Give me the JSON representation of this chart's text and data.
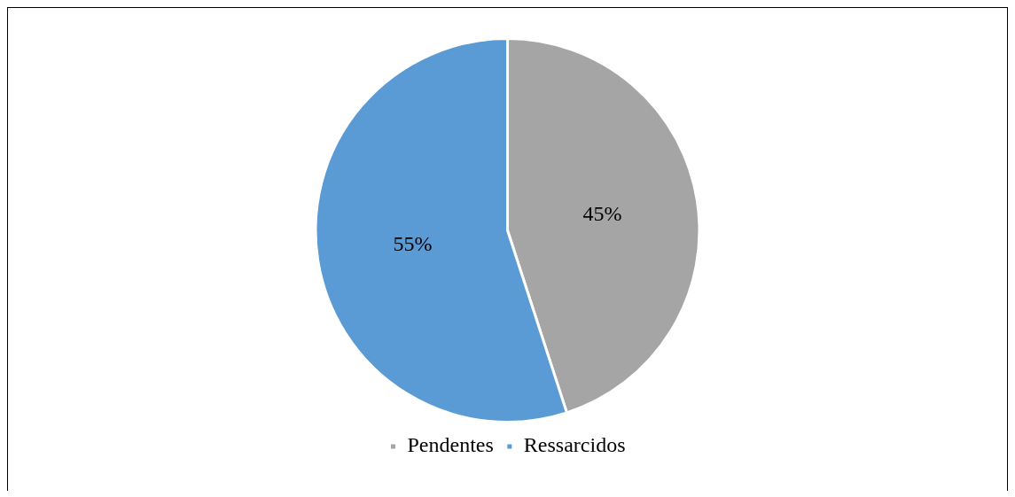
{
  "chart_data": {
    "type": "pie",
    "categories": [
      "Pendentes",
      "Ressarcidos"
    ],
    "values": [
      45,
      55
    ],
    "colors": [
      "#a5a5a5",
      "#5b9bd5"
    ],
    "value_labels": [
      "45%",
      "55%"
    ],
    "legend": "bottom"
  }
}
